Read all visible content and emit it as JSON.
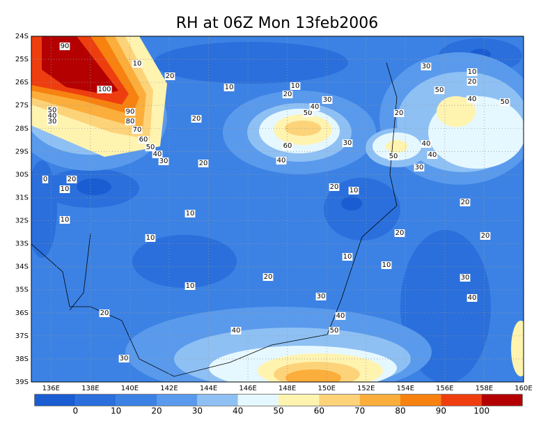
{
  "title": "RH at 06Z Mon 13feb2006",
  "lon_labels": [
    "136E",
    "138E",
    "140E",
    "142E",
    "144E",
    "146E",
    "148E",
    "150E",
    "152E",
    "154E",
    "156E",
    "158E",
    "160E"
  ],
  "lat_labels": [
    "24S",
    "25S",
    "26S",
    "27S",
    "28S",
    "29S",
    "30S",
    "31S",
    "32S",
    "33S",
    "34S",
    "35S",
    "36S",
    "37S",
    "38S",
    "39S"
  ],
  "colorbar": {
    "ticks": [
      0,
      10,
      20,
      30,
      40,
      50,
      60,
      70,
      80,
      90,
      100
    ],
    "colors": [
      "#1a5dd2",
      "#2a6fdb",
      "#3c82e4",
      "#5a9aec",
      "#8ec0f4",
      "#e6f8ff",
      "#fff3b0",
      "#fdd37a",
      "#fbae3c",
      "#f7820f",
      "#ee3e10",
      "#b40000"
    ]
  },
  "contour_labels": [
    90,
    10,
    20,
    100,
    10,
    10,
    20,
    30,
    10,
    20,
    50,
    40,
    50,
    50,
    40,
    30,
    90,
    80,
    70,
    60,
    50,
    40,
    30,
    20,
    30,
    50,
    40,
    20,
    60,
    40,
    30,
    40,
    50,
    40,
    30,
    20,
    0,
    20,
    10,
    20,
    10,
    20,
    10,
    10,
    20,
    20,
    10,
    10,
    10,
    20,
    10,
    30,
    40,
    30,
    20,
    40,
    50,
    40,
    30
  ]
}
